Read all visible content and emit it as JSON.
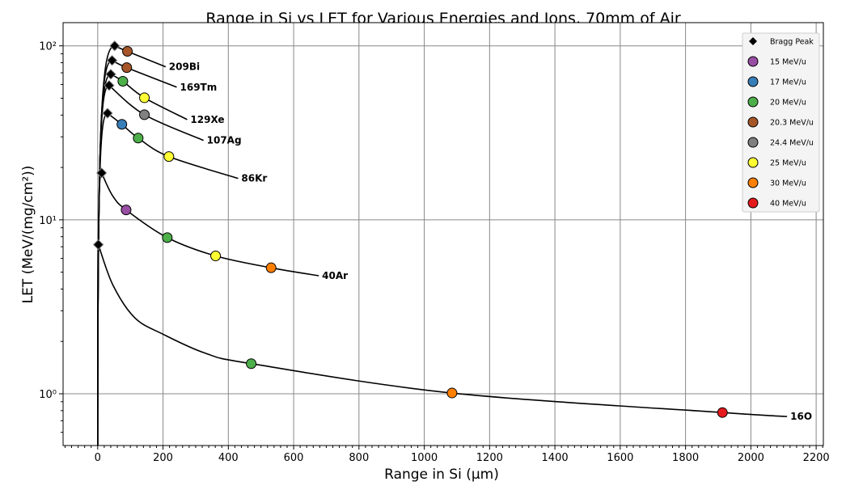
{
  "chart_data": {
    "type": "line",
    "title": "Range in Si vs LET for Various Energies and Ions, 70mm of Air",
    "xlabel": "Range in Si (µm)",
    "ylabel": "LET (MeV/(mg/cm²))",
    "xlim": [
      -106,
      2222
    ],
    "ylim": [
      0.504,
      136
    ],
    "yscale": "log",
    "grid": true,
    "legend_position": "top-right",
    "x_ticks": [
      0,
      200,
      400,
      600,
      800,
      1000,
      1200,
      1400,
      1600,
      1800,
      2000,
      2200
    ],
    "x_tick_labels": [
      "0",
      "200",
      "400",
      "600",
      "800",
      "1000",
      "1200",
      "1400",
      "1600",
      "1800",
      "2000",
      "2200"
    ],
    "y_ticks": [
      1,
      10,
      100
    ],
    "y_tick_labels": [
      "10⁰",
      "10¹",
      "10²"
    ],
    "legend": [
      {
        "label": "Bragg Peak",
        "marker": "diamond",
        "color": "#000000"
      },
      {
        "label": "15 MeV/u",
        "marker": "circle",
        "color": "#984ea3"
      },
      {
        "label": "17 MeV/u",
        "marker": "circle",
        "color": "#377eb8"
      },
      {
        "label": "20 MeV/u",
        "marker": "circle",
        "color": "#4daf4a"
      },
      {
        "label": "20.3 MeV/u",
        "marker": "circle",
        "color": "#a65628"
      },
      {
        "label": "24.4 MeV/u",
        "marker": "circle",
        "color": "#808080"
      },
      {
        "label": "25 MeV/u",
        "marker": "circle",
        "color": "#ffff33"
      },
      {
        "label": "30 MeV/u",
        "marker": "circle",
        "color": "#ff7f00"
      },
      {
        "label": "40 MeV/u",
        "marker": "circle",
        "color": "#e41a1c"
      }
    ],
    "series": [
      {
        "name": "16O",
        "bragg_peak": [
          2,
          7.2
        ],
        "curve": [
          [
            2,
            7.2
          ],
          [
            47,
            4.2
          ],
          [
            114,
            2.73
          ],
          [
            200,
            2.2
          ],
          [
            330,
            1.71
          ],
          [
            470,
            1.49
          ],
          [
            1085,
            1.01
          ],
          [
            1913,
            0.78
          ],
          [
            2111,
            0.74
          ]
        ],
        "points": [
          {
            "energy": "20 MeV/u",
            "x": 470,
            "y": 1.49
          },
          {
            "energy": "30 MeV/u",
            "x": 1085,
            "y": 1.01
          },
          {
            "energy": "40 MeV/u",
            "x": 1913,
            "y": 0.78
          }
        ]
      },
      {
        "name": "40Ar",
        "bragg_peak": [
          12,
          18.6
        ],
        "curve": [
          [
            12,
            18.6
          ],
          [
            45,
            13.8
          ],
          [
            87,
            11.4
          ],
          [
            213,
            7.9
          ],
          [
            361,
            6.2
          ],
          [
            531,
            5.3
          ],
          [
            677,
            4.77
          ]
        ],
        "points": [
          {
            "energy": "15 MeV/u",
            "x": 87,
            "y": 11.4
          },
          {
            "energy": "20 MeV/u",
            "x": 213,
            "y": 7.9
          },
          {
            "energy": "25 MeV/u",
            "x": 361,
            "y": 6.2
          },
          {
            "energy": "30 MeV/u",
            "x": 531,
            "y": 5.3
          }
        ]
      },
      {
        "name": "86Kr",
        "bragg_peak": [
          30,
          41
        ],
        "curve": [
          [
            30,
            41
          ],
          [
            74,
            35.4
          ],
          [
            124,
            29.5
          ],
          [
            218,
            23.1
          ],
          [
            430,
            17.3
          ]
        ],
        "points": [
          {
            "energy": "17 MeV/u",
            "x": 74,
            "y": 35.4
          },
          {
            "energy": "20 MeV/u",
            "x": 124,
            "y": 29.5
          },
          {
            "energy": "25 MeV/u",
            "x": 218,
            "y": 23.1
          }
        ]
      },
      {
        "name": "107Ag",
        "bragg_peak": [
          35,
          59.2
        ],
        "curve": [
          [
            35,
            59.2
          ],
          [
            143,
            40.2
          ],
          [
            324,
            28.6
          ]
        ],
        "points": [
          {
            "energy": "24.4 MeV/u",
            "x": 143,
            "y": 40.2
          }
        ]
      },
      {
        "name": "129Xe",
        "bragg_peak": [
          40,
          68.7
        ],
        "curve": [
          [
            40,
            68.7
          ],
          [
            77,
            62.6
          ],
          [
            143,
            50.3
          ],
          [
            274,
            37.7
          ]
        ],
        "points": [
          {
            "energy": "20 MeV/u",
            "x": 77,
            "y": 62.6
          },
          {
            "energy": "25 MeV/u",
            "x": 143,
            "y": 50.3
          }
        ]
      },
      {
        "name": "169Tm",
        "bragg_peak": [
          44,
          82.5
        ],
        "curve": [
          [
            44,
            82.5
          ],
          [
            89,
            75
          ],
          [
            242,
            57.9
          ]
        ],
        "points": [
          {
            "energy": "20.3 MeV/u",
            "x": 89,
            "y": 75
          }
        ]
      },
      {
        "name": "209Bi",
        "bragg_peak": [
          52,
          100
        ],
        "curve": [
          [
            52,
            100
          ],
          [
            91,
            93
          ],
          [
            208,
            75.8
          ]
        ],
        "points": [
          {
            "energy": "20.3 MeV/u",
            "x": 91,
            "y": 93
          }
        ]
      }
    ]
  }
}
